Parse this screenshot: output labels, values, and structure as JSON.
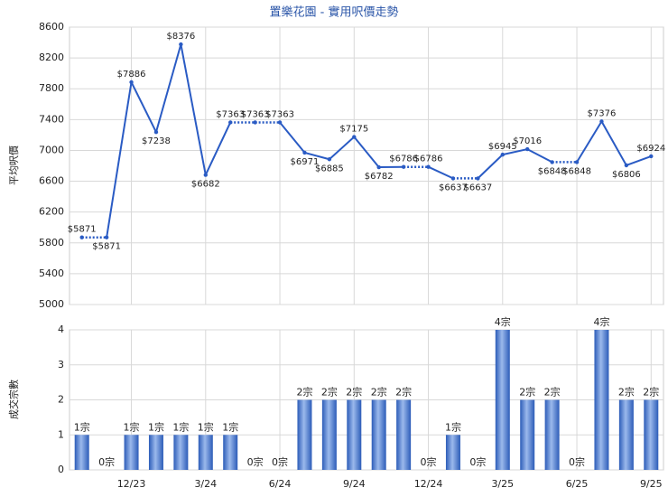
{
  "chart_data": [
    {
      "type": "line",
      "title": "置樂花園 - 實用呎價走勢",
      "ylabel": "平均呎價",
      "color": "#2a5bc4",
      "ylim": [
        5000,
        8600
      ],
      "yticks": [
        5000,
        5400,
        5800,
        6200,
        6600,
        7000,
        7400,
        7800,
        8200,
        8600
      ],
      "grid": true,
      "values": [
        5871,
        5871,
        7886,
        7238,
        8376,
        6682,
        7363,
        7363,
        7363,
        6971,
        6885,
        7175,
        6782,
        6786,
        6786,
        6637,
        6637,
        6945,
        7016,
        6848,
        6848,
        7376,
        6806,
        6924
      ],
      "value_labels": [
        "$5871",
        "$5871",
        "$7886",
        "$7238",
        "$8376",
        "$6682",
        "$7363",
        "$7363",
        "$7363",
        "$6971",
        "$6885",
        "$7175",
        "$6782",
        "$6786",
        "$6786",
        "$6637",
        "$6637",
        "$6945",
        "$7016",
        "$6848",
        "$6848",
        "$7376",
        "$6806",
        "$6924"
      ]
    },
    {
      "type": "bar",
      "ylabel": "成交宗數",
      "color": "#3566c4",
      "categories": [
        null,
        null,
        "12/23",
        null,
        null,
        "3/24",
        null,
        null,
        "6/24",
        null,
        null,
        "9/24",
        null,
        null,
        "12/24",
        null,
        null,
        "3/25",
        null,
        null,
        "6/25",
        null,
        null,
        "9/25"
      ],
      "ylim": [
        0,
        4
      ],
      "yticks": [
        0,
        1,
        2,
        3,
        4
      ],
      "grid": true,
      "values": [
        1,
        0,
        1,
        1,
        1,
        1,
        1,
        0,
        0,
        2,
        2,
        2,
        2,
        2,
        0,
        1,
        0,
        4,
        2,
        2,
        0,
        4,
        2,
        2
      ],
      "value_labels": [
        "1宗",
        "0宗",
        "1宗",
        "1宗",
        "1宗",
        "1宗",
        "1宗",
        "0宗",
        "0宗",
        "2宗",
        "2宗",
        "2宗",
        "2宗",
        "2宗",
        "0宗",
        "1宗",
        "0宗",
        "4宗",
        "2宗",
        "2宗",
        "0宗",
        "4宗",
        "2宗",
        "2宗"
      ]
    }
  ]
}
